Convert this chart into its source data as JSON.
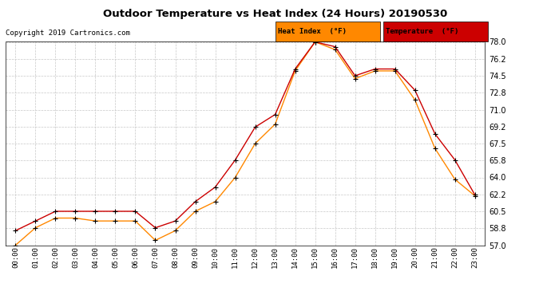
{
  "title": "Outdoor Temperature vs Heat Index (24 Hours) 20190530",
  "copyright": "Copyright 2019 Cartronics.com",
  "hours": [
    "00:00",
    "01:00",
    "02:00",
    "03:00",
    "04:00",
    "05:00",
    "06:00",
    "07:00",
    "08:00",
    "09:00",
    "10:00",
    "11:00",
    "12:00",
    "13:00",
    "14:00",
    "15:00",
    "16:00",
    "17:00",
    "18:00",
    "19:00",
    "20:00",
    "21:00",
    "22:00",
    "23:00"
  ],
  "temperature": [
    58.5,
    59.5,
    60.5,
    60.5,
    60.5,
    60.5,
    60.5,
    58.8,
    59.5,
    61.5,
    63.0,
    65.8,
    69.2,
    70.5,
    75.2,
    78.0,
    77.5,
    74.5,
    75.2,
    75.2,
    73.0,
    68.5,
    65.8,
    62.2
  ],
  "heat_index": [
    57.0,
    58.8,
    59.8,
    59.8,
    59.5,
    59.5,
    59.5,
    57.5,
    58.5,
    60.5,
    61.5,
    64.0,
    67.5,
    69.5,
    75.0,
    78.0,
    77.2,
    74.2,
    75.0,
    75.0,
    72.0,
    67.0,
    63.8,
    62.1
  ],
  "temp_color": "#cc0000",
  "heat_color": "#ff8800",
  "ylim_min": 57.0,
  "ylim_max": 78.0,
  "yticks": [
    57.0,
    58.8,
    60.5,
    62.2,
    64.0,
    65.8,
    67.5,
    69.2,
    71.0,
    72.8,
    74.5,
    76.2,
    78.0
  ],
  "background_color": "#ffffff",
  "grid_color": "#c8c8c8",
  "legend_heat_bg": "#ff8800",
  "legend_temp_bg": "#cc0000",
  "legend_heat_label": "Heat Index  (°F)",
  "legend_temp_label": "Temperature  (°F)"
}
